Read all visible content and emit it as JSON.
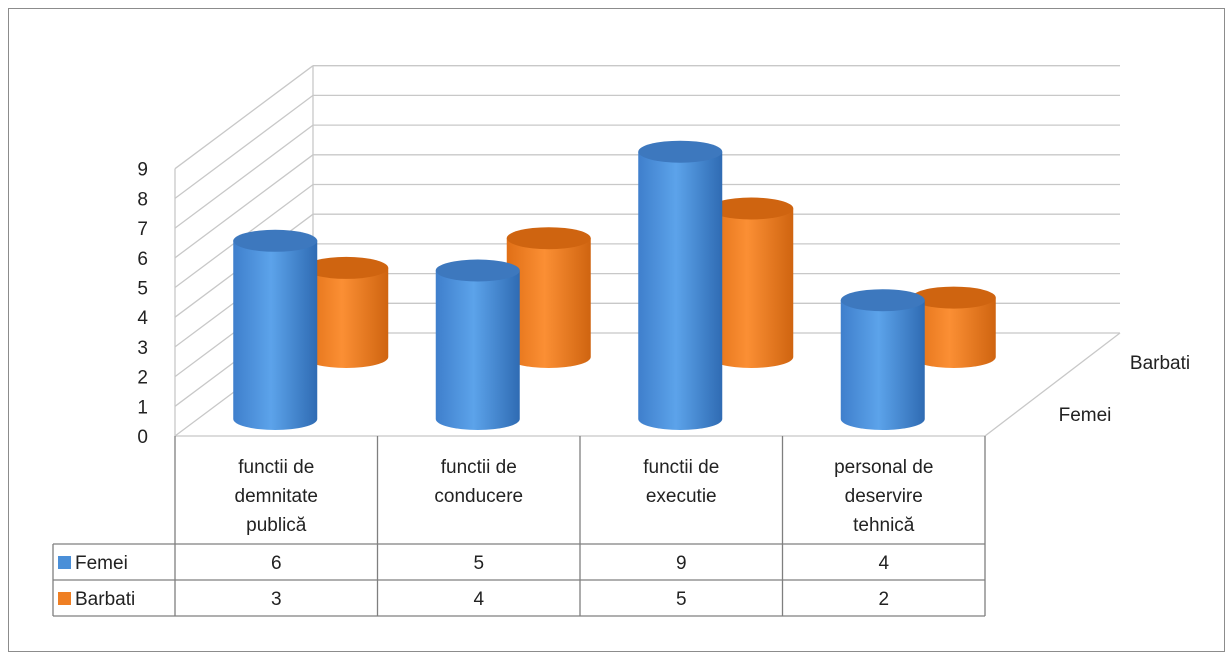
{
  "chart_data": {
    "type": "bar",
    "categories": [
      [
        "functii de",
        "demnitate",
        "publică"
      ],
      [
        "functii de",
        "conducere"
      ],
      [
        "functii de",
        "executie"
      ],
      [
        "personal de",
        "deservire",
        "tehnică"
      ]
    ],
    "series": [
      {
        "name": "Femei",
        "values": [
          6,
          5,
          9,
          4
        ],
        "color": "#4a8fd8"
      },
      {
        "name": "Barbati",
        "values": [
          3,
          4,
          5,
          2
        ],
        "color": "#ef7f23"
      }
    ],
    "ylim": [
      0,
      9
    ],
    "yticks": [
      "0",
      "1",
      "2",
      "3",
      "4",
      "5",
      "6",
      "7",
      "8",
      "9"
    ],
    "depth_labels": [
      "Femei",
      "Barbati"
    ],
    "grid": true,
    "three_d": true,
    "bar_shape": "cylinder",
    "data_table": true
  }
}
